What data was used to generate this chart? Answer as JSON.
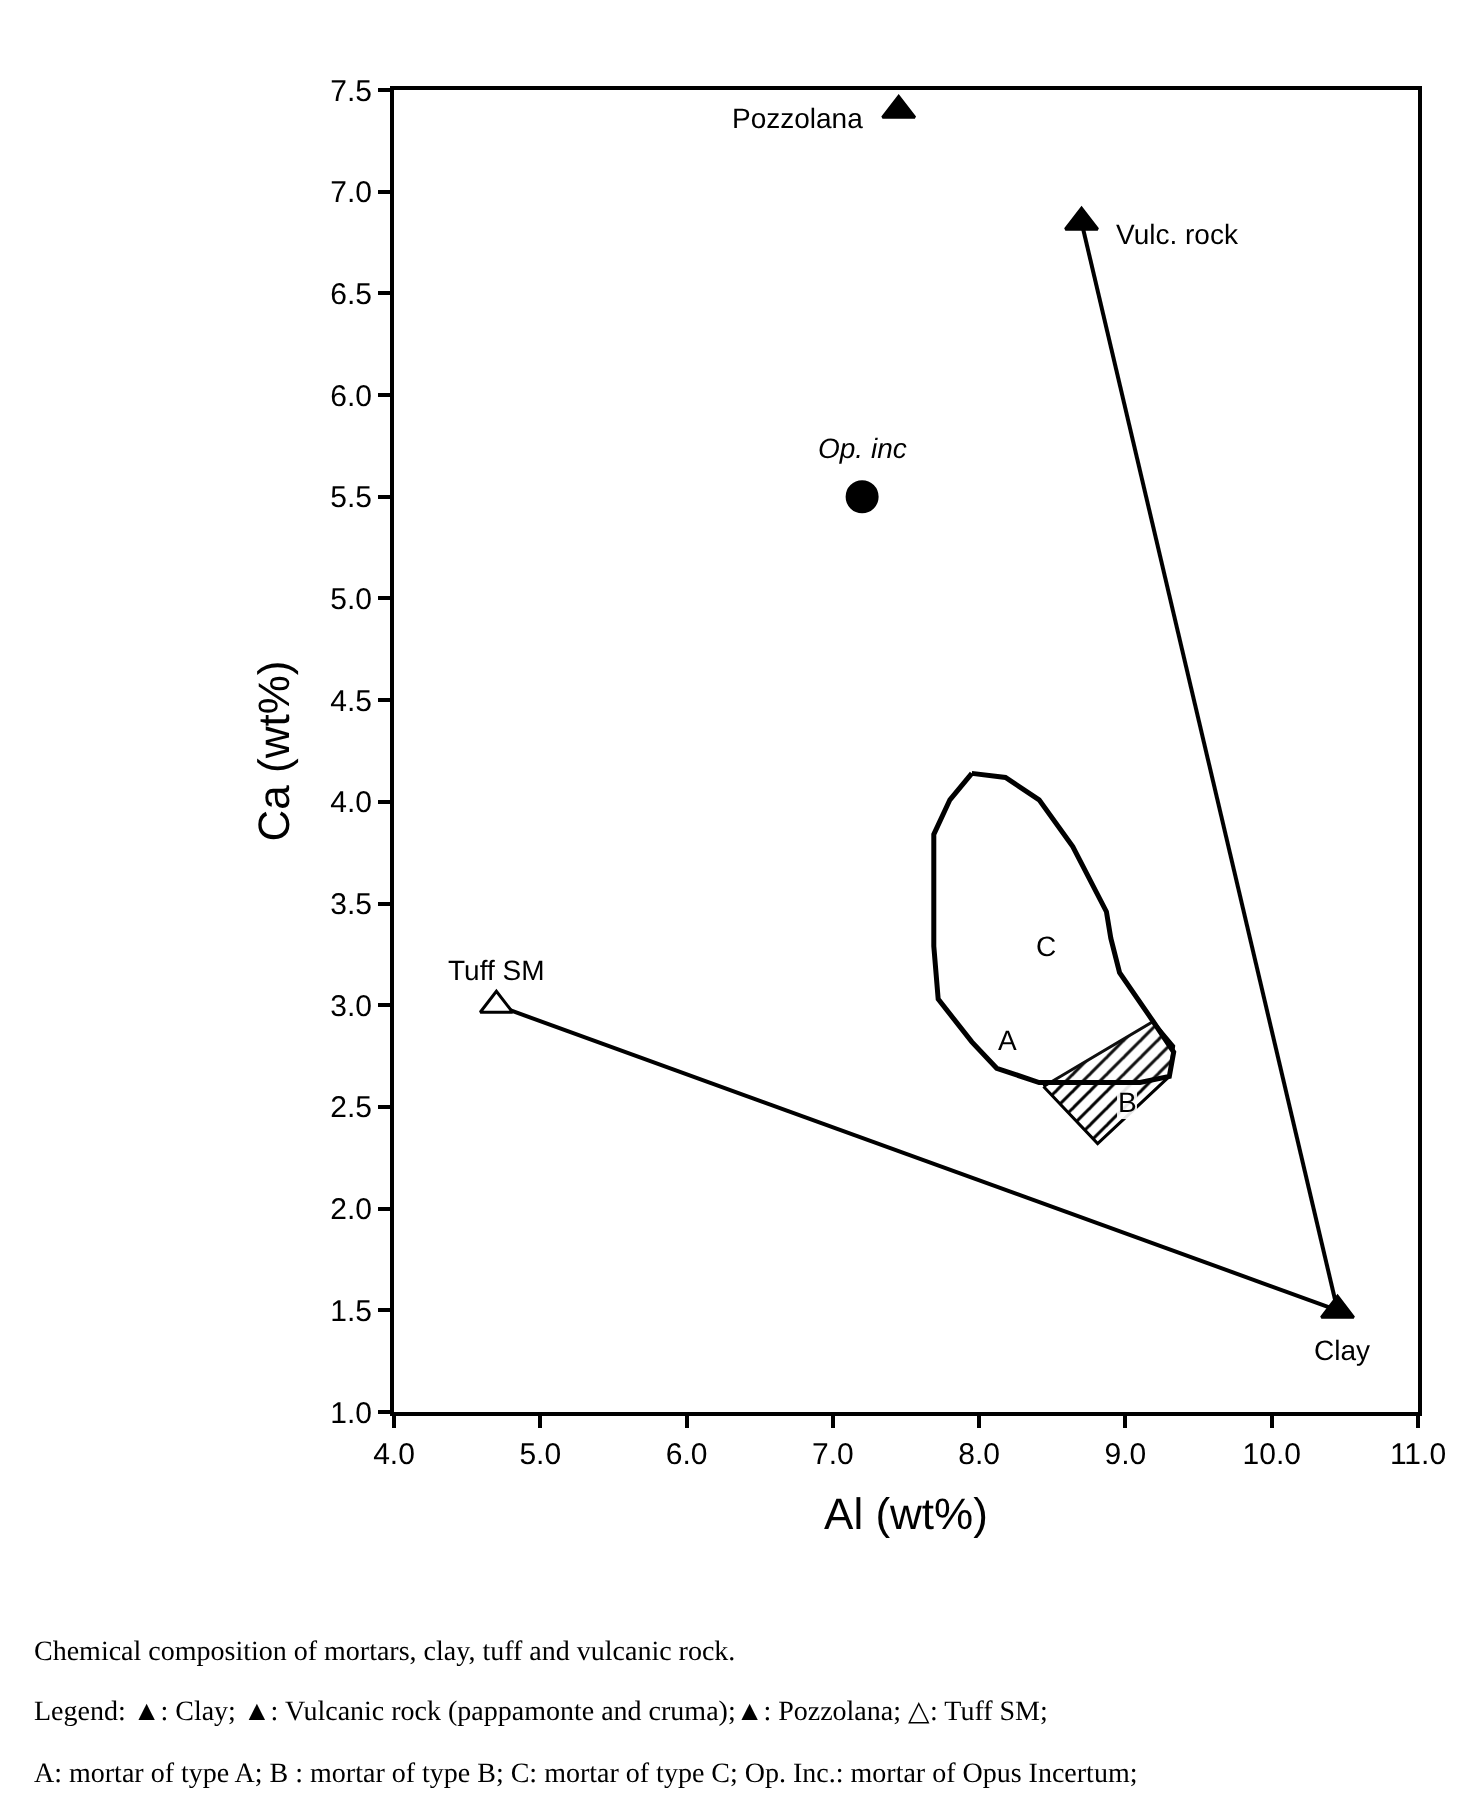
{
  "chart_data": {
    "type": "scatter",
    "xlabel": "Al (wt%)",
    "ylabel": "Ca (wt%)",
    "xlim": [
      4,
      11
    ],
    "xticks": [
      {
        "value": 4,
        "label": "4.0"
      },
      {
        "value": 5,
        "label": "5.0"
      },
      {
        "value": 6,
        "label": "6.0"
      },
      {
        "value": 7,
        "label": "7.0"
      },
      {
        "value": 8,
        "label": "8.0"
      },
      {
        "value": 9,
        "label": "9.0"
      },
      {
        "value": 10,
        "label": "10.0"
      },
      {
        "value": 11,
        "label": "11.0"
      }
    ],
    "ylim": [
      1,
      7.5
    ],
    "yticks": [
      {
        "value": 1,
        "label": "1.0"
      },
      1.5,
      {
        "value": 2,
        "label": "2.0"
      },
      2.5,
      {
        "value": 3,
        "label": "3.0"
      },
      3.5,
      {
        "value": 4,
        "label": "4.0"
      },
      4.5,
      {
        "value": 5,
        "label": "5.0"
      },
      5.5,
      {
        "value": 6,
        "label": "6.0"
      },
      6.5,
      {
        "value": 7,
        "label": "7.0"
      },
      7.5
    ],
    "grid": false,
    "legend": false,
    "series": [
      {
        "type": "line",
        "marker": "none",
        "color": "#000000",
        "x": [
          4.7,
          10.45
        ],
        "values": [
          3.0,
          1.5
        ]
      },
      {
        "type": "line",
        "marker": "none",
        "color": "#000000",
        "x": [
          8.7,
          10.45
        ],
        "values": [
          6.85,
          1.5
        ]
      },
      {
        "name": "B",
        "type": "area",
        "marker": "none",
        "color": "#000000",
        "x": [
          8.44,
          9.19,
          9.33,
          9.3,
          8.81,
          8.44
        ],
        "values": [
          2.6,
          2.92,
          2.8,
          2.65,
          2.32,
          2.6
        ]
      },
      {
        "name": "C",
        "type": "area",
        "marker": "none",
        "color": "#000000",
        "x": [
          7.95,
          8.18,
          8.41,
          8.64,
          8.87,
          8.9,
          8.96,
          9.19,
          9.33,
          9.3,
          9.1,
          8.41,
          8.12,
          7.95,
          7.72,
          7.69,
          7.69,
          7.8,
          7.95
        ],
        "values": [
          4.14,
          4.12,
          4.01,
          3.78,
          3.46,
          3.33,
          3.16,
          2.92,
          2.77,
          2.65,
          2.62,
          2.62,
          2.69,
          2.82,
          3.03,
          3.29,
          3.84,
          4.01,
          4.14
        ]
      },
      {
        "name": "Pozzolana",
        "marker": "triangle",
        "color": "#000000",
        "x": [
          7.45
        ],
        "values": [
          7.4
        ]
      },
      {
        "name": "Vulc. rock",
        "marker": "triangle",
        "color": "#000000",
        "x": [
          8.7
        ],
        "values": [
          6.85
        ]
      },
      {
        "name": "Op. inc",
        "marker": "circle",
        "color": "#000000",
        "x": [
          7.2
        ],
        "values": [
          5.5
        ]
      },
      {
        "name": "Tuff SM",
        "marker": "triangle",
        "color": "#ffffff",
        "x": [
          4.7
        ],
        "values": [
          3.0
        ]
      },
      {
        "name": "Clay",
        "marker": "triangle",
        "color": "#000000",
        "x": [
          10.45
        ],
        "values": [
          1.5
        ]
      }
    ],
    "annotations": [
      {
        "text": "A",
        "x": 8.12,
        "y": 2.69
      },
      "Chemical composition of mortars, clay, tuff and vulcanic rock.",
      "Legend: ▲: Clay; ▲: Vulcanic rock (pappamonte and cruma);▲: Pozzolana; △: Tuff SM;",
      "A: mortar of type A; B : mortar of type B; C: mortar of type C; Op. Inc.: mortar of Opus Incertum;"
    ]
  }
}
